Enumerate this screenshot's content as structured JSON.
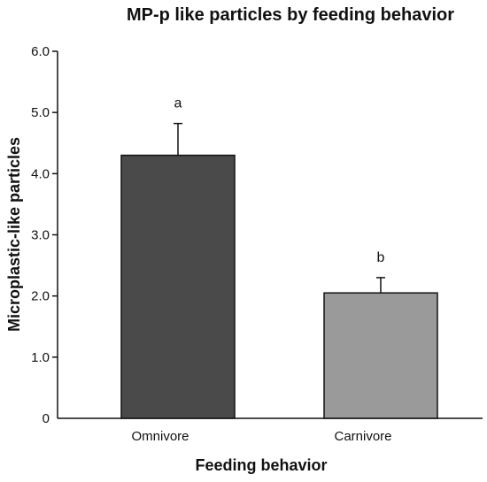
{
  "chart_data": {
    "type": "bar",
    "title": "MP-p like particles by feeding behavior",
    "xlabel": "Feeding behavior",
    "ylabel": "Microplastic-like particles",
    "categories": [
      "Omnivore",
      "Carnivore"
    ],
    "values": [
      4.3,
      2.05
    ],
    "error_upper": [
      4.82,
      2.3
    ],
    "annotations": [
      "a",
      "b"
    ],
    "ylim": [
      0,
      6
    ],
    "yticks": [
      {
        "value": 0,
        "label": "0"
      },
      {
        "value": 1,
        "label": "1.0"
      },
      {
        "value": 2,
        "label": "2.0"
      },
      {
        "value": 3,
        "label": "3.0"
      },
      {
        "value": 4,
        "label": "4.0"
      },
      {
        "value": 5,
        "label": "5.0"
      },
      {
        "value": 6,
        "label": "6.0"
      }
    ],
    "bar_colors": [
      "#4a4a4a",
      "#9a9a9a"
    ],
    "grid": false,
    "legend": "none"
  }
}
